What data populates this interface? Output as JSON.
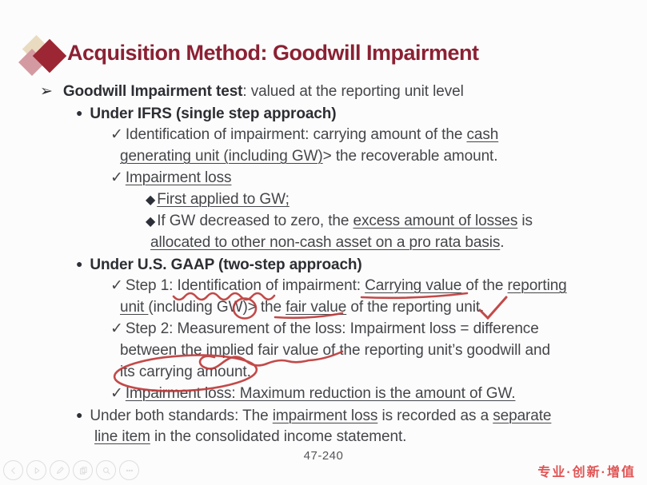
{
  "slide": {
    "title": "Acquisition Method: Goodwill Impairment",
    "page_number": "47-240",
    "watermark": "专业·创新·增值",
    "bullet_glyphs": {
      "arrow": "➢",
      "dot": "●",
      "check": "✓",
      "diamond": "◆"
    },
    "rows": [
      {
        "level": "l1",
        "bullet": "arrow",
        "segments": [
          {
            "t": "Goodwill Impairment test",
            "b": true
          },
          {
            "t": ": valued at the reporting unit level"
          }
        ]
      },
      {
        "level": "l2",
        "bullet": "dot",
        "segments": [
          {
            "t": "Under IFRS (single step approach)",
            "b": true
          }
        ]
      },
      {
        "level": "l3",
        "bullet": "check",
        "segments": [
          {
            "t": "Identification of impairment: carrying amount of the "
          },
          {
            "t": "cash",
            "u": true
          }
        ]
      },
      {
        "level": "l3c",
        "segments": [
          {
            "t": "generating unit (including GW)",
            "u": true
          },
          {
            "t": "> the recoverable amount."
          }
        ]
      },
      {
        "level": "l3",
        "bullet": "check",
        "segments": [
          {
            "t": "Impairment loss",
            "u": true
          }
        ]
      },
      {
        "level": "l4",
        "bullet": "diamond",
        "segments": [
          {
            "t": "First applied to GW;",
            "u": true
          }
        ]
      },
      {
        "level": "l4",
        "bullet": "diamond",
        "segments": [
          {
            "t": "If GW decreased to zero, the "
          },
          {
            "t": "excess amount of losses",
            "u": true
          },
          {
            "t": " is"
          }
        ]
      },
      {
        "level": "l4c",
        "segments": [
          {
            "t": "allocated to other non-cash asset on a pro rata basis",
            "u": true
          },
          {
            "t": "."
          }
        ]
      },
      {
        "level": "l2",
        "bullet": "dot",
        "segments": [
          {
            "t": "Under U.S. GAAP (two-step approach)",
            "b": true
          }
        ]
      },
      {
        "level": "l3",
        "bullet": "check",
        "segments": [
          {
            "t": "Step 1: Identification of impairment: "
          },
          {
            "t": "Carrying value",
            "u": true
          },
          {
            "t": " of the "
          },
          {
            "t": "reporting",
            "u": true
          }
        ]
      },
      {
        "level": "l3c",
        "segments": [
          {
            "t": "unit ",
            "u": true
          },
          {
            "t": "(including GW)> the "
          },
          {
            "t": "fair value",
            "u": true
          },
          {
            "t": " of the reporting unit."
          }
        ]
      },
      {
        "level": "l3",
        "bullet": "check",
        "segments": [
          {
            "t": "Step 2: Measurement of the loss: Impairment loss = difference"
          }
        ]
      },
      {
        "level": "l3c",
        "segments": [
          {
            "t": "between the implied fair value of the reporting unit’s goodwill and"
          }
        ]
      },
      {
        "level": "l3c",
        "segments": [
          {
            "t": "its carrying amount."
          }
        ]
      },
      {
        "level": "l3",
        "bullet": "check",
        "segments": [
          {
            "t": "Impairment loss: Maximum reduction is the amount of GW.",
            "u": true
          }
        ]
      },
      {
        "level": "l2",
        "bullet": "dot",
        "segments": [
          {
            "t": "Under both standards: The "
          },
          {
            "t": "impairment loss",
            "u": true
          },
          {
            "t": " is recorded as a "
          },
          {
            "t": "separate",
            "u": true
          }
        ]
      },
      {
        "level": "l2c",
        "segments": [
          {
            "t": "line item",
            "u": true
          },
          {
            "t": " in the consolidated income statement."
          }
        ]
      }
    ]
  },
  "toolbar": {
    "buttons": [
      {
        "name": "prev-button",
        "icon": "prev-icon"
      },
      {
        "name": "play-button",
        "icon": "play-icon"
      },
      {
        "name": "pen-button",
        "icon": "pen-icon"
      },
      {
        "name": "pages-button",
        "icon": "pages-icon"
      },
      {
        "name": "zoom-button",
        "icon": "zoom-icon"
      },
      {
        "name": "more-button",
        "icon": "more-icon"
      }
    ]
  },
  "ink_annotations": [
    "wavy-underline-identification",
    "underline-carrying-value",
    "circle-greater-than",
    "underline-fair-value",
    "checkmark-step1",
    "swoosh-implied-fair-value",
    "ellipse-carrying-amount"
  ],
  "colors": {
    "title": "#8b2133",
    "body_text": "#45464a",
    "ink_red": "#bf3a3a",
    "watermark_red": "#e15353",
    "diamond_dark": "#9c2633",
    "diamond_rose": "#d49aa2",
    "diamond_cream": "#e9dbbf"
  }
}
